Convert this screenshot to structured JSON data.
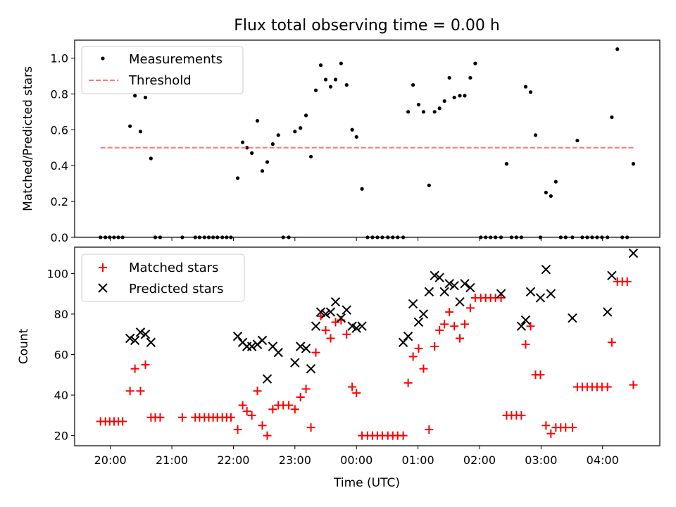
{
  "figure": {
    "title": "Flux total observing time = 0.00 h"
  },
  "chart_data": [
    {
      "type": "scatter",
      "ylabel": "Matched/Predicted stars",
      "xlabel": "",
      "xlim": [
        19.42,
        28.93
      ],
      "ylim": [
        0.0,
        1.1
      ],
      "grid": false,
      "legend_placement": "top-left",
      "xticks": [
        20,
        21,
        22,
        23,
        24,
        25,
        26,
        27,
        28
      ],
      "yticks": [
        0.0,
        0.2,
        0.4,
        0.6,
        0.8,
        1.0
      ],
      "ytick_labels": [
        "0.0",
        "0.2",
        "0.4",
        "0.6",
        "0.8",
        "1.0"
      ],
      "series": [
        {
          "name": "Measurements",
          "color": "#000000",
          "marker": "dot",
          "x": [
            19.84,
            19.92,
            19.99,
            20.06,
            20.13,
            20.2,
            20.32,
            20.4,
            20.49,
            20.57,
            20.66,
            20.73,
            20.81,
            21.17,
            21.38,
            21.45,
            21.53,
            21.6,
            21.67,
            21.74,
            21.82,
            21.89,
            21.96,
            22.07,
            22.15,
            22.22,
            22.3,
            22.39,
            22.47,
            22.55,
            22.64,
            22.73,
            22.81,
            22.9,
            23.0,
            23.09,
            23.18,
            23.26,
            23.34,
            23.42,
            23.5,
            23.58,
            23.66,
            23.75,
            23.84,
            23.93,
            24.0,
            24.09,
            24.18,
            24.26,
            24.34,
            24.42,
            24.51,
            24.59,
            24.67,
            24.76,
            24.84,
            24.92,
            25.01,
            25.09,
            25.18,
            25.27,
            25.35,
            25.43,
            25.51,
            25.59,
            25.68,
            25.76,
            25.85,
            25.93,
            26.02,
            26.1,
            26.18,
            26.26,
            26.35,
            26.44,
            26.52,
            26.6,
            26.68,
            26.75,
            26.83,
            26.91,
            26.99,
            27.08,
            27.16,
            27.24,
            27.32,
            27.4,
            27.51,
            27.59,
            27.67,
            27.75,
            27.83,
            27.91,
            27.99,
            28.08,
            28.15,
            28.24,
            28.32,
            28.4,
            28.5
          ],
          "y": [
            0.0,
            0.0,
            0.0,
            0.0,
            0.0,
            0.0,
            0.62,
            0.79,
            0.59,
            0.78,
            0.44,
            0.0,
            0.0,
            0.0,
            0.0,
            0.0,
            0.0,
            0.0,
            0.0,
            0.0,
            0.0,
            0.0,
            0.0,
            0.33,
            0.53,
            0.5,
            0.47,
            0.65,
            0.37,
            0.42,
            0.52,
            0.57,
            0.0,
            0.0,
            0.59,
            0.61,
            0.68,
            0.45,
            0.82,
            0.96,
            0.88,
            0.84,
            0.88,
            0.97,
            0.85,
            0.6,
            0.56,
            0.27,
            0.0,
            0.0,
            0.0,
            0.0,
            0.0,
            0.0,
            0.0,
            0.0,
            0.7,
            0.85,
            0.74,
            0.7,
            0.29,
            0.7,
            0.72,
            0.76,
            0.89,
            0.78,
            0.79,
            0.79,
            0.89,
            0.97,
            0.0,
            0.0,
            0.0,
            0.0,
            0.0,
            0.41,
            0.0,
            0.0,
            0.0,
            0.84,
            0.81,
            0.57,
            0.0,
            0.25,
            0.23,
            0.31,
            0.0,
            0.0,
            0.0,
            0.54,
            0.0,
            0.0,
            0.0,
            0.0,
            0.0,
            0.0,
            0.67,
            1.05,
            0.0,
            0.0,
            0.41
          ]
        },
        {
          "name": "Threshold",
          "color": "#ff7777",
          "style": "dashed",
          "x": [
            19.84,
            28.5
          ],
          "y": [
            0.5,
            0.5
          ]
        }
      ]
    },
    {
      "type": "scatter",
      "ylabel": "Count",
      "xlabel": "Time (UTC)",
      "xlim": [
        19.42,
        28.93
      ],
      "ylim": [
        15,
        113
      ],
      "grid": false,
      "legend_placement": "top-left",
      "xticks": [
        20,
        21,
        22,
        23,
        24,
        25,
        26,
        27,
        28
      ],
      "xtick_labels": [
        "20:00",
        "21:00",
        "22:00",
        "23:00",
        "00:00",
        "01:00",
        "02:00",
        "03:00",
        "04:00"
      ],
      "yticks": [
        20,
        40,
        60,
        80,
        100
      ],
      "ytick_labels": [
        "20",
        "40",
        "60",
        "80",
        "100"
      ],
      "series": [
        {
          "name": "Matched stars",
          "color": "#ff0000",
          "marker": "plus",
          "x": [
            19.84,
            19.92,
            19.99,
            20.06,
            20.13,
            20.2,
            20.32,
            20.4,
            20.49,
            20.57,
            20.66,
            20.73,
            20.81,
            21.17,
            21.38,
            21.45,
            21.53,
            21.6,
            21.67,
            21.74,
            21.82,
            21.89,
            21.96,
            22.07,
            22.15,
            22.22,
            22.3,
            22.39,
            22.47,
            22.55,
            22.64,
            22.73,
            22.81,
            22.9,
            23.0,
            23.09,
            23.18,
            23.26,
            23.34,
            23.42,
            23.5,
            23.58,
            23.66,
            23.75,
            23.84,
            23.93,
            24.0,
            24.09,
            24.18,
            24.26,
            24.34,
            24.42,
            24.51,
            24.59,
            24.67,
            24.76,
            24.84,
            24.92,
            25.01,
            25.09,
            25.18,
            25.27,
            25.35,
            25.43,
            25.51,
            25.59,
            25.68,
            25.76,
            25.85,
            25.93,
            26.02,
            26.1,
            26.18,
            26.26,
            26.35,
            26.44,
            26.52,
            26.6,
            26.68,
            26.75,
            26.83,
            26.91,
            26.99,
            27.08,
            27.16,
            27.24,
            27.32,
            27.4,
            27.51,
            27.59,
            27.67,
            27.75,
            27.83,
            27.91,
            27.99,
            28.08,
            28.15,
            28.24,
            28.32,
            28.4,
            28.5
          ],
          "y": [
            27,
            27,
            27,
            27,
            27,
            27,
            42,
            53,
            42,
            55,
            29,
            29,
            29,
            29,
            29,
            29,
            29,
            29,
            29,
            29,
            29,
            29,
            29,
            23,
            35,
            32,
            30,
            42,
            25,
            20,
            33,
            35,
            35,
            35,
            33,
            39,
            43,
            24,
            61,
            79,
            72,
            68,
            76,
            77,
            70,
            44,
            41,
            20,
            20,
            20,
            20,
            20,
            20,
            20,
            20,
            20,
            46,
            59,
            63,
            53,
            23,
            64,
            72,
            75,
            81,
            74,
            68,
            75,
            83,
            88,
            88,
            88,
            88,
            88,
            88,
            30,
            30,
            30,
            30,
            65,
            74,
            50,
            50,
            25,
            21,
            24,
            24,
            24,
            24,
            44,
            44,
            44,
            44,
            44,
            44,
            44,
            66,
            96,
            96,
            96,
            45
          ]
        },
        {
          "name": "Predicted stars",
          "color": "#000000",
          "marker": "x",
          "x": [
            20.32,
            20.4,
            20.49,
            20.57,
            20.66,
            22.07,
            22.15,
            22.22,
            22.3,
            22.39,
            22.47,
            22.55,
            22.64,
            22.73,
            23.0,
            23.09,
            23.18,
            23.26,
            23.34,
            23.42,
            23.5,
            23.58,
            23.66,
            23.75,
            23.84,
            23.93,
            24.0,
            24.09,
            24.76,
            24.84,
            24.92,
            25.01,
            25.09,
            25.18,
            25.27,
            25.35,
            25.43,
            25.51,
            25.59,
            25.68,
            25.76,
            25.85,
            26.35,
            26.68,
            26.75,
            26.83,
            26.99,
            27.08,
            27.16,
            27.51,
            28.08,
            28.15,
            28.5
          ],
          "y": [
            68,
            67,
            71,
            70,
            66,
            69,
            66,
            64,
            64,
            65,
            67,
            48,
            64,
            61,
            56,
            64,
            63,
            53,
            74,
            81,
            80,
            81,
            86,
            78,
            82,
            74,
            73,
            74,
            66,
            69,
            85,
            76,
            80,
            91,
            99,
            98,
            91,
            95,
            94,
            86,
            95,
            93,
            90,
            74,
            77,
            91,
            88,
            102,
            90,
            78,
            81,
            99,
            110
          ]
        }
      ]
    }
  ]
}
